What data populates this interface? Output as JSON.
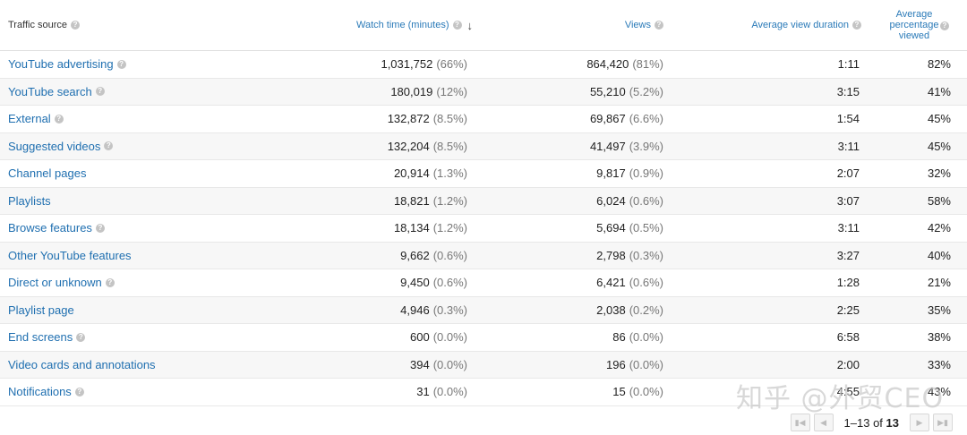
{
  "header": {
    "traffic_source": "Traffic source",
    "watch_time": "Watch time (minutes)",
    "views": "Views",
    "avg_view_duration": "Average view duration",
    "avg_pct_viewed": "Average percentage viewed",
    "help_icon": "question-circle-icon",
    "sort_icon": "arrow-down-icon"
  },
  "rows": [
    {
      "source": "YouTube advertising",
      "help": true,
      "watch": "1,031,752",
      "watch_pct": "(66%)",
      "views": "864,420",
      "views_pct": "(81%)",
      "duration": "1:11",
      "pct_viewed": "82%"
    },
    {
      "source": "YouTube search",
      "help": true,
      "watch": "180,019",
      "watch_pct": "(12%)",
      "views": "55,210",
      "views_pct": "(5.2%)",
      "duration": "3:15",
      "pct_viewed": "41%"
    },
    {
      "source": "External",
      "help": true,
      "watch": "132,872",
      "watch_pct": "(8.5%)",
      "views": "69,867",
      "views_pct": "(6.6%)",
      "duration": "1:54",
      "pct_viewed": "45%"
    },
    {
      "source": "Suggested videos",
      "help": true,
      "watch": "132,204",
      "watch_pct": "(8.5%)",
      "views": "41,497",
      "views_pct": "(3.9%)",
      "duration": "3:11",
      "pct_viewed": "45%"
    },
    {
      "source": "Channel pages",
      "help": false,
      "watch": "20,914",
      "watch_pct": "(1.3%)",
      "views": "9,817",
      "views_pct": "(0.9%)",
      "duration": "2:07",
      "pct_viewed": "32%"
    },
    {
      "source": "Playlists",
      "help": false,
      "watch": "18,821",
      "watch_pct": "(1.2%)",
      "views": "6,024",
      "views_pct": "(0.6%)",
      "duration": "3:07",
      "pct_viewed": "58%"
    },
    {
      "source": "Browse features",
      "help": true,
      "watch": "18,134",
      "watch_pct": "(1.2%)",
      "views": "5,694",
      "views_pct": "(0.5%)",
      "duration": "3:11",
      "pct_viewed": "42%"
    },
    {
      "source": "Other YouTube features",
      "help": false,
      "watch": "9,662",
      "watch_pct": "(0.6%)",
      "views": "2,798",
      "views_pct": "(0.3%)",
      "duration": "3:27",
      "pct_viewed": "40%"
    },
    {
      "source": "Direct or unknown",
      "help": true,
      "watch": "9,450",
      "watch_pct": "(0.6%)",
      "views": "6,421",
      "views_pct": "(0.6%)",
      "duration": "1:28",
      "pct_viewed": "21%"
    },
    {
      "source": "Playlist page",
      "help": false,
      "watch": "4,946",
      "watch_pct": "(0.3%)",
      "views": "2,038",
      "views_pct": "(0.2%)",
      "duration": "2:25",
      "pct_viewed": "35%"
    },
    {
      "source": "End screens",
      "help": true,
      "watch": "600",
      "watch_pct": "(0.0%)",
      "views": "86",
      "views_pct": "(0.0%)",
      "duration": "6:58",
      "pct_viewed": "38%"
    },
    {
      "source": "Video cards and annotations",
      "help": false,
      "watch": "394",
      "watch_pct": "(0.0%)",
      "views": "196",
      "views_pct": "(0.0%)",
      "duration": "2:00",
      "pct_viewed": "33%"
    },
    {
      "source": "Notifications",
      "help": true,
      "watch": "31",
      "watch_pct": "(0.0%)",
      "views": "15",
      "views_pct": "(0.0%)",
      "duration": "4:55",
      "pct_viewed": "43%"
    }
  ],
  "pagination": {
    "range": "1–13 of",
    "total": "13",
    "first_icon": "first-page-icon",
    "prev_icon": "prev-page-icon",
    "next_icon": "next-page-icon",
    "last_icon": "last-page-icon"
  },
  "watermark": "知乎 @外贸CEO"
}
